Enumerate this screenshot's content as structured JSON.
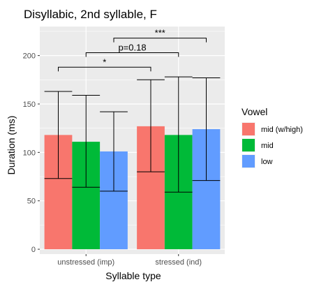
{
  "chart_data": {
    "type": "bar",
    "title": "Disyllabic, 2nd syllable, F",
    "xlabel": "Syllable type",
    "ylabel": "Duration (ms)",
    "categories": [
      "unstressed (imp)",
      "stressed (ind)"
    ],
    "ylim": [
      -5,
      230
    ],
    "yticks": [
      0,
      50,
      100,
      150,
      200
    ],
    "grid": true,
    "legend": {
      "title": "Vowel",
      "position": "right"
    },
    "series": [
      {
        "name": "mid (w/high)",
        "color": "#F8766D",
        "values": [
          118,
          127
        ],
        "error_low": [
          73,
          80
        ],
        "error_high": [
          163,
          175
        ]
      },
      {
        "name": "mid",
        "color": "#00BA38",
        "values": [
          111,
          118
        ],
        "error_low": [
          64,
          59
        ],
        "error_high": [
          159,
          178
        ]
      },
      {
        "name": "low",
        "color": "#619CFF",
        "values": [
          101,
          124
        ],
        "error_low": [
          60,
          71
        ],
        "error_high": [
          142,
          177
        ]
      }
    ],
    "annotations": [
      {
        "label": "*",
        "from": [
          0,
          0
        ],
        "to": [
          1,
          0
        ],
        "y": 188
      },
      {
        "label": "p=0.18",
        "from": [
          0,
          1
        ],
        "to": [
          1,
          1
        ],
        "y": 203
      },
      {
        "label": "***",
        "from": [
          0,
          2
        ],
        "to": [
          1,
          2
        ],
        "y": 218
      }
    ]
  }
}
